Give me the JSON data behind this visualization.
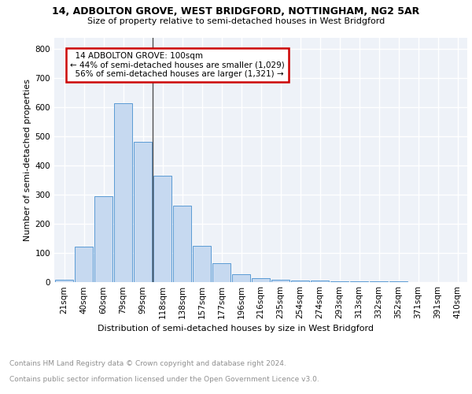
{
  "title1": "14, ADBOLTON GROVE, WEST BRIDGFORD, NOTTINGHAM, NG2 5AR",
  "title2": "Size of property relative to semi-detached houses in West Bridgford",
  "xlabel": "Distribution of semi-detached houses by size in West Bridgford",
  "ylabel": "Number of semi-detached properties",
  "footer1": "Contains HM Land Registry data © Crown copyright and database right 2024.",
  "footer2": "Contains public sector information licensed under the Open Government Licence v3.0.",
  "bar_labels": [
    "21sqm",
    "40sqm",
    "60sqm",
    "79sqm",
    "99sqm",
    "118sqm",
    "138sqm",
    "157sqm",
    "177sqm",
    "196sqm",
    "216sqm",
    "235sqm",
    "254sqm",
    "274sqm",
    "293sqm",
    "313sqm",
    "332sqm",
    "352sqm",
    "371sqm",
    "391sqm",
    "410sqm"
  ],
  "bar_values": [
    8,
    120,
    295,
    615,
    480,
    365,
    262,
    123,
    65,
    25,
    13,
    7,
    5,
    4,
    2,
    1,
    1,
    1,
    0,
    0,
    0
  ],
  "bar_color": "#c6d9f0",
  "bar_edge_color": "#5b9bd5",
  "property_label": "14 ADBOLTON GROVE: 100sqm",
  "pct_smaller": 44,
  "n_smaller": 1029,
  "pct_larger": 56,
  "n_larger": 1321,
  "vline_color": "#505050",
  "annotation_box_edge": "#cc0000",
  "annotation_box_bg": "#ffffff",
  "background_color": "#eef2f8",
  "grid_color": "#ffffff",
  "yticks": [
    0,
    100,
    200,
    300,
    400,
    500,
    600,
    700,
    800
  ],
  "ylim": [
    0,
    840
  ],
  "title1_fontsize": 9,
  "title2_fontsize": 8,
  "xlabel_fontsize": 8,
  "ylabel_fontsize": 8,
  "tick_fontsize": 7.5,
  "footer_fontsize": 6.5
}
